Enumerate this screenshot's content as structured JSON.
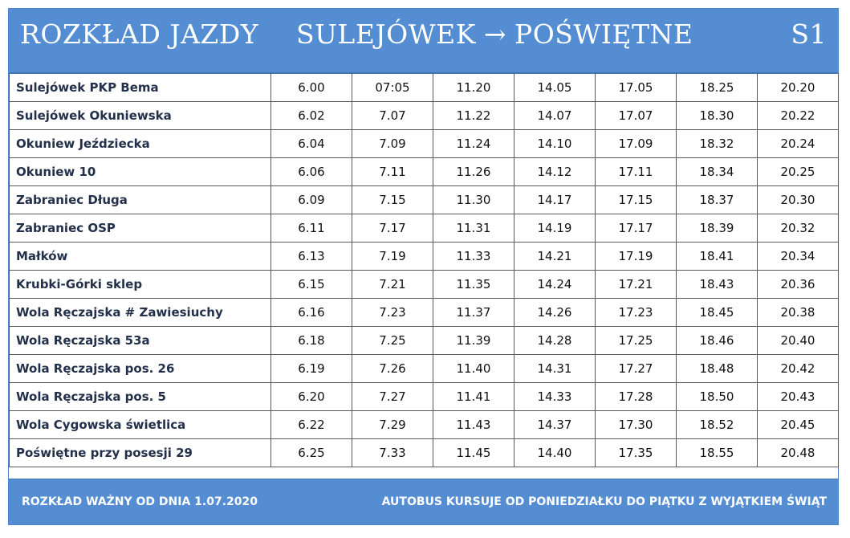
{
  "header": {
    "title": "ROZKŁAD JAZDY",
    "from": "SULEJÓWEK",
    "arrow": "→",
    "to": "POŚWIĘTNE",
    "line": "S1"
  },
  "stops": [
    {
      "name": "Sulejówek PKP Bema",
      "times": [
        "6.00",
        "07:05",
        "11.20",
        "14.05",
        "17.05",
        "18.25",
        "20.20"
      ]
    },
    {
      "name": "Sulejówek Okuniewska",
      "times": [
        "6.02",
        "7.07",
        "11.22",
        "14.07",
        "17.07",
        "18.30",
        "20.22"
      ]
    },
    {
      "name": "Okuniew Jeździecka",
      "times": [
        "6.04",
        "7.09",
        "11.24",
        "14.10",
        "17.09",
        "18.32",
        "20.24"
      ]
    },
    {
      "name": "Okuniew 10",
      "times": [
        "6.06",
        "7.11",
        "11.26",
        "14.12",
        "17.11",
        "18.34",
        "20.25"
      ]
    },
    {
      "name": "Zabraniec Długa",
      "times": [
        "6.09",
        "7.15",
        "11.30",
        "14.17",
        "17.15",
        "18.37",
        "20.30"
      ]
    },
    {
      "name": "Zabraniec OSP",
      "times": [
        "6.11",
        "7.17",
        "11.31",
        "14.19",
        "17.17",
        "18.39",
        "20.32"
      ]
    },
    {
      "name": "Małków",
      "times": [
        "6.13",
        "7.19",
        "11.33",
        "14.21",
        "17.19",
        "18.41",
        "20.34"
      ]
    },
    {
      "name": "Krubki-Górki sklep",
      "times": [
        "6.15",
        "7.21",
        "11.35",
        "14.24",
        "17.21",
        "18.43",
        "20.36"
      ]
    },
    {
      "name": "Wola Ręczajska # Zawiesiuchy",
      "times": [
        "6.16",
        "7.23",
        "11.37",
        "14.26",
        "17.23",
        "18.45",
        "20.38"
      ]
    },
    {
      "name": "Wola Ręczajska 53a",
      "times": [
        "6.18",
        "7.25",
        "11.39",
        "14.28",
        "17.25",
        "18.46",
        "20.40"
      ]
    },
    {
      "name": "Wola Ręczajska pos. 26",
      "times": [
        "6.19",
        "7.26",
        "11.40",
        "14.31",
        "17.27",
        "18.48",
        "20.42"
      ]
    },
    {
      "name": "Wola Ręczajska pos. 5",
      "times": [
        "6.20",
        "7.27",
        "11.41",
        "14.33",
        "17.28",
        "18.50",
        "20.43"
      ]
    },
    {
      "name": "Wola Cygowska świetlica",
      "times": [
        "6.22",
        "7.29",
        "11.43",
        "14.37",
        "17.30",
        "18.52",
        "20.45"
      ]
    },
    {
      "name": "Poświętne przy posesji 29",
      "times": [
        "6.25",
        "7.33",
        "11.45",
        "14.40",
        "17.35",
        "18.55",
        "20.48"
      ]
    }
  ],
  "footer": {
    "valid_from": "ROZKŁAD WAŻNY OD DNIA 1.07.2020",
    "note": "AUTOBUS KURSUJE OD PONIEDZIAŁKU DO PIĄTKU Z WYJĄTKIEM ŚWIĄT"
  },
  "colors": {
    "header_bg": "#558dd3",
    "header_text": "#ffffff",
    "stop_text": "#22304a",
    "grid": "#5a5a5a"
  }
}
